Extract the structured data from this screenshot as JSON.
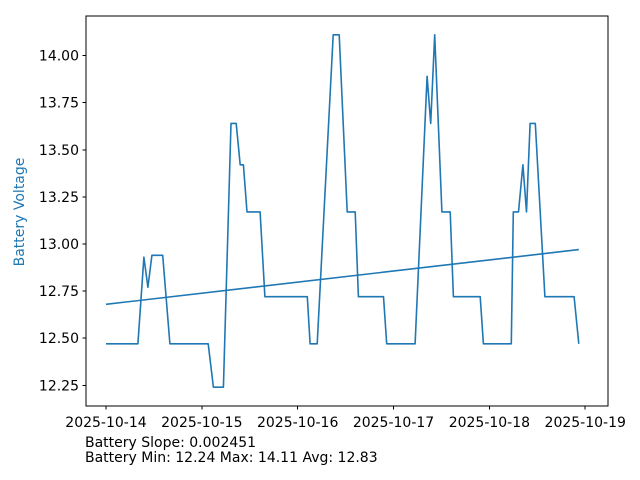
{
  "colors": {
    "series_blue": "#1f77b4",
    "axis_black": "#000000",
    "background": "#ffffff"
  },
  "annotations": {
    "slope_line": "Battery Slope: 0.002451",
    "stats_line": "Battery Min: 12.24 Max: 14.11 Avg: 12.83"
  },
  "chart_data": {
    "type": "line",
    "title": "",
    "xlabel": "",
    "ylabel": "Battery Voltage",
    "x_unit": "hours since 2025-10-14 00:00",
    "xlim": [
      -5.0,
      125.7
    ],
    "ylim": [
      12.14,
      14.21
    ],
    "grid": false,
    "legend": "none",
    "x_ticks": [
      {
        "hours": 0,
        "label": "2025-10-14"
      },
      {
        "hours": 24,
        "label": "2025-10-15"
      },
      {
        "hours": 48,
        "label": "2025-10-16"
      },
      {
        "hours": 72,
        "label": "2025-10-17"
      },
      {
        "hours": 96,
        "label": "2025-10-18"
      },
      {
        "hours": 120,
        "label": "2025-10-19"
      }
    ],
    "y_ticks": [
      {
        "value": 12.25,
        "label": "12.25"
      },
      {
        "value": 12.5,
        "label": "12.50"
      },
      {
        "value": 12.75,
        "label": "12.75"
      },
      {
        "value": 13.0,
        "label": "13.00"
      },
      {
        "value": 13.25,
        "label": "13.25"
      },
      {
        "value": 13.5,
        "label": "13.50"
      },
      {
        "value": 13.75,
        "label": "13.75"
      },
      {
        "value": 14.0,
        "label": "14.00"
      }
    ],
    "stats": {
      "slope_per_hour": 0.002451,
      "min": 12.24,
      "max": 14.11,
      "avg": 12.83
    },
    "series": [
      {
        "name": "battery-voltage-line",
        "color": "#1f77b4",
        "points": [
          [
            0,
            12.47
          ],
          [
            8,
            12.47
          ],
          [
            9.5,
            12.93
          ],
          [
            10.5,
            12.77
          ],
          [
            11.5,
            12.94
          ],
          [
            14.2,
            12.94
          ],
          [
            16,
            12.47
          ],
          [
            25.6,
            12.47
          ],
          [
            26.9,
            12.24
          ],
          [
            29.4,
            12.24
          ],
          [
            31.3,
            13.64
          ],
          [
            32.6,
            13.64
          ],
          [
            33.6,
            13.42
          ],
          [
            34.4,
            13.42
          ],
          [
            35.3,
            13.17
          ],
          [
            38.6,
            13.17
          ],
          [
            39.8,
            12.72
          ],
          [
            50.4,
            12.72
          ],
          [
            51.1,
            12.47
          ],
          [
            52.9,
            12.47
          ],
          [
            56.9,
            14.11
          ],
          [
            58.4,
            14.11
          ],
          [
            60.4,
            13.17
          ],
          [
            62.4,
            13.17
          ],
          [
            63.2,
            12.72
          ],
          [
            69.5,
            12.72
          ],
          [
            70.3,
            12.47
          ],
          [
            77.4,
            12.47
          ],
          [
            80.4,
            13.89
          ],
          [
            81.3,
            13.64
          ],
          [
            82.3,
            14.11
          ],
          [
            84.1,
            13.17
          ],
          [
            86.2,
            13.17
          ],
          [
            87.0,
            12.72
          ],
          [
            93.7,
            12.72
          ],
          [
            94.5,
            12.47
          ],
          [
            101.5,
            12.47
          ],
          [
            102.0,
            13.17
          ],
          [
            103.3,
            13.17
          ],
          [
            104.4,
            13.42
          ],
          [
            105.3,
            13.17
          ],
          [
            106.2,
            13.64
          ],
          [
            107.5,
            13.64
          ],
          [
            109.9,
            12.72
          ],
          [
            117.2,
            12.72
          ],
          [
            118.4,
            12.47
          ]
        ]
      },
      {
        "name": "trend-line",
        "color": "#1f77b4",
        "points": [
          [
            0,
            12.68
          ],
          [
            118.4,
            12.97
          ]
        ]
      }
    ]
  }
}
